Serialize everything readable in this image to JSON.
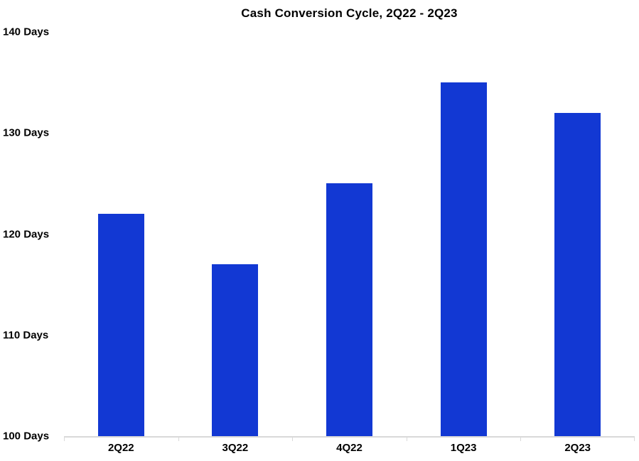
{
  "title": "Cash Conversion Cycle, 2Q22 - 2Q23",
  "chart_data": {
    "type": "bar",
    "title": "Cash Conversion Cycle, 2Q22 - 2Q23",
    "categories": [
      "2Q22",
      "3Q22",
      "4Q22",
      "1Q23",
      "2Q23"
    ],
    "values": [
      122,
      117,
      125,
      135,
      132
    ],
    "unit": "Days",
    "xlabel": "",
    "ylabel": "",
    "ylim": [
      100,
      140
    ],
    "ytick_step": 10,
    "ytick_labels": [
      "140 Days",
      "130 Days",
      "120 Days",
      "110 Days",
      "100 Days"
    ],
    "grid": false,
    "legend": "none",
    "colors": {
      "bar": "#1238d3",
      "axis_line": "#d9d9d9",
      "text": "#000000",
      "background": "#ffffff"
    }
  }
}
